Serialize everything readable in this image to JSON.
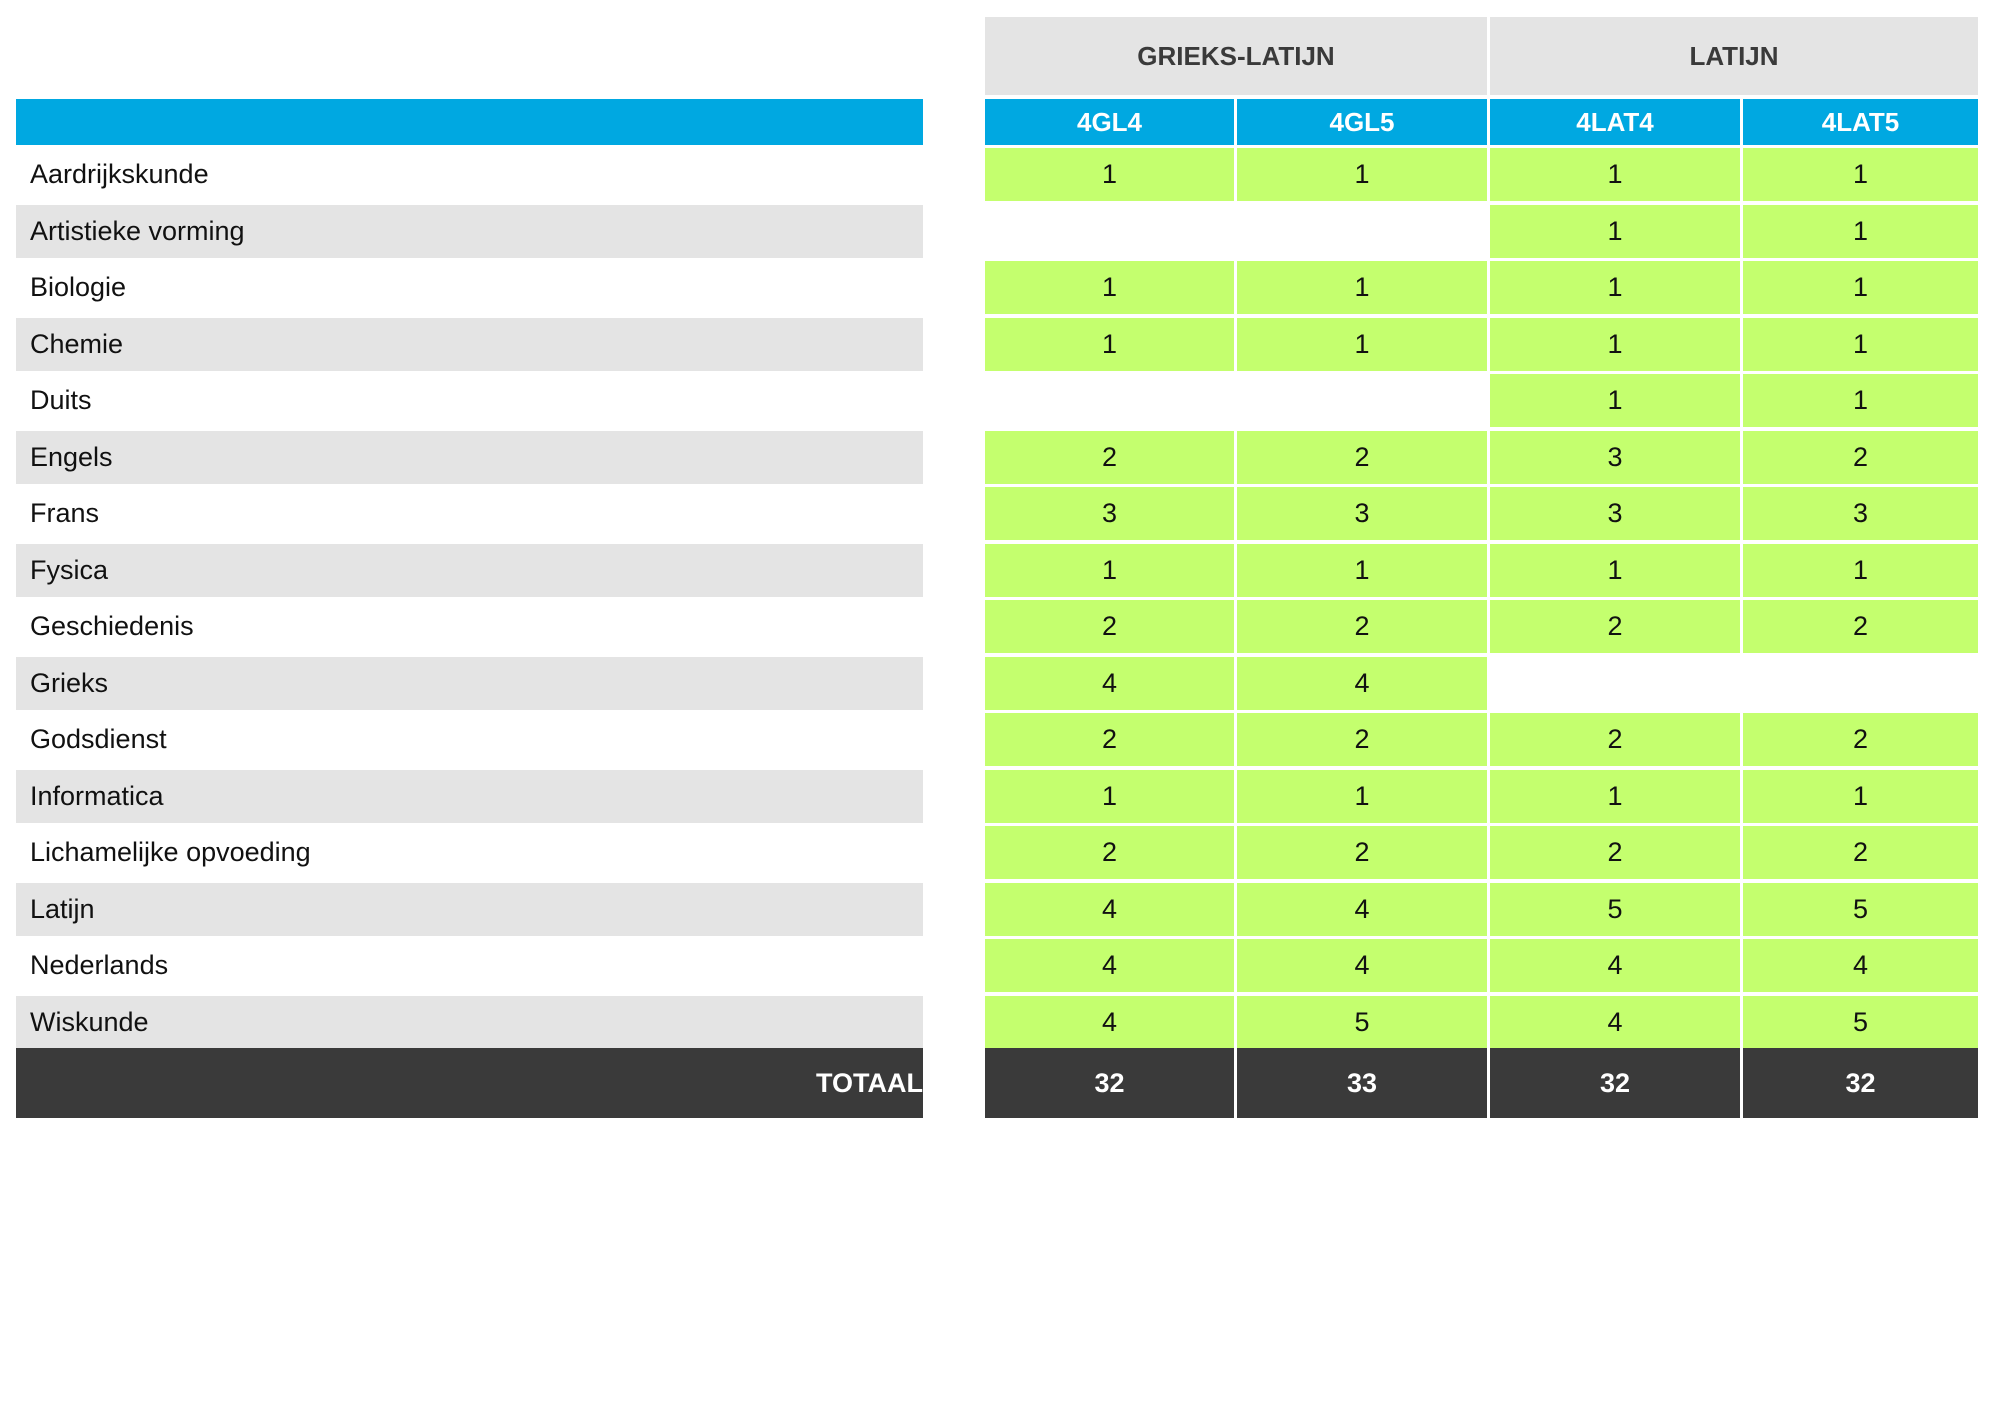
{
  "groups": [
    {
      "label": "GRIEKS-LATIJN"
    },
    {
      "label": "LATIJN"
    }
  ],
  "columns": [
    "4GL4",
    "4GL5",
    "4LAT4",
    "4LAT5"
  ],
  "subjects": [
    {
      "name": "Aardrijkskunde",
      "values": [
        "1",
        "1",
        "1",
        "1"
      ]
    },
    {
      "name": "Artistieke vorming",
      "values": [
        "",
        "",
        "1",
        "1"
      ]
    },
    {
      "name": "Biologie",
      "values": [
        "1",
        "1",
        "1",
        "1"
      ]
    },
    {
      "name": "Chemie",
      "values": [
        "1",
        "1",
        "1",
        "1"
      ]
    },
    {
      "name": "Duits",
      "values": [
        "",
        "",
        "1",
        "1"
      ]
    },
    {
      "name": "Engels",
      "values": [
        "2",
        "2",
        "3",
        "2"
      ]
    },
    {
      "name": "Frans",
      "values": [
        "3",
        "3",
        "3",
        "3"
      ]
    },
    {
      "name": "Fysica",
      "values": [
        "1",
        "1",
        "1",
        "1"
      ]
    },
    {
      "name": "Geschiedenis",
      "values": [
        "2",
        "2",
        "2",
        "2"
      ]
    },
    {
      "name": "Grieks",
      "values": [
        "4",
        "4",
        "",
        ""
      ]
    },
    {
      "name": "Godsdienst",
      "values": [
        "2",
        "2",
        "2",
        "2"
      ]
    },
    {
      "name": "Informatica",
      "values": [
        "1",
        "1",
        "1",
        "1"
      ]
    },
    {
      "name": "Lichamelijke opvoeding",
      "values": [
        "2",
        "2",
        "2",
        "2"
      ]
    },
    {
      "name": "Latijn",
      "values": [
        "4",
        "4",
        "5",
        "5"
      ]
    },
    {
      "name": "Nederlands",
      "values": [
        "4",
        "4",
        "4",
        "4"
      ]
    },
    {
      "name": "Wiskunde",
      "values": [
        "4",
        "5",
        "4",
        "5"
      ]
    }
  ],
  "total": {
    "label": "TOTAAL",
    "values": [
      "32",
      "33",
      "32",
      "32"
    ]
  },
  "colors": {
    "header_blue": "#00a8e1",
    "cell_green": "#c4ff6e",
    "row_gray": "#e4e4e4",
    "total_dark": "#3a3a3a"
  }
}
